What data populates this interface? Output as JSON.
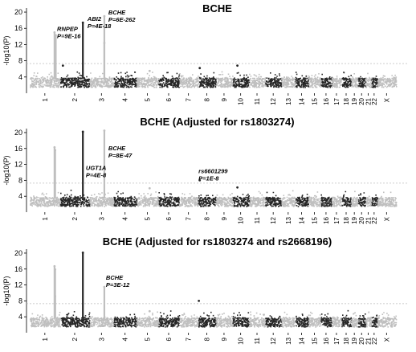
{
  "chart_data": [
    {
      "type": "scatter",
      "title": "BCHE",
      "ylabel": "-log10(P)",
      "ylim": [
        0,
        21
      ],
      "yticks": [
        4,
        8,
        12,
        16,
        20
      ],
      "threshold": 7.3,
      "chromosomes": [
        "1",
        "2",
        "3",
        "4",
        "5",
        "6",
        "7",
        "8",
        "9",
        "10",
        "11",
        "12",
        "13",
        "14",
        "15",
        "16",
        "17",
        "18",
        "19",
        "20",
        "21",
        "22",
        "X"
      ],
      "annotations": [
        {
          "gene": "RNPEP",
          "p": "P=9E-16",
          "chr": "1",
          "value": 15
        },
        {
          "gene": "ABI2",
          "p": "P=4E-18",
          "chr": "2",
          "value": 17.4
        },
        {
          "gene": "BCHE",
          "p": "P=6E-262",
          "chr": "3",
          "value": 19
        }
      ],
      "peaks": [
        {
          "chr": "1",
          "pos": 0.82,
          "value": 15
        },
        {
          "chr": "1",
          "pos": 0.86,
          "value": 14.3
        },
        {
          "chr": "2",
          "pos": 0.78,
          "value": 17.4
        },
        {
          "chr": "3",
          "pos": 0.62,
          "value": 19
        },
        {
          "chr": "3",
          "pos": 0.62,
          "value": 12.4
        },
        {
          "chr": "2",
          "pos": 0.1,
          "value": 6.8
        },
        {
          "chr": "10",
          "pos": 0.3,
          "value": 6.8
        },
        {
          "chr": "8",
          "pos": 0.1,
          "value": 6.2
        },
        {
          "chr": "5",
          "pos": 0.6,
          "value": 5.5
        }
      ]
    },
    {
      "type": "scatter",
      "title": "BCHE (Adjusted for rs1803274)",
      "ylabel": "-log10(P)",
      "ylim": [
        0,
        21
      ],
      "yticks": [
        4,
        8,
        12,
        16,
        20
      ],
      "threshold": 7.3,
      "chromosomes": [
        "1",
        "2",
        "3",
        "4",
        "5",
        "6",
        "7",
        "8",
        "9",
        "10",
        "11",
        "12",
        "13",
        "14",
        "15",
        "16",
        "17",
        "18",
        "19",
        "20",
        "21",
        "22",
        "X"
      ],
      "annotations": [
        {
          "gene": "BCHE",
          "p": "P=8E-47",
          "chr": "3",
          "value": 20.5
        },
        {
          "gene": "UGT1A",
          "p": "P=4E-8",
          "chr": "2",
          "value": 7.8
        },
        {
          "gene": "rs6601299",
          "p": "P=1E-8",
          "chr": "8",
          "value": 8
        }
      ],
      "peaks": [
        {
          "chr": "1",
          "pos": 0.82,
          "value": 16.3
        },
        {
          "chr": "1",
          "pos": 0.84,
          "value": 15.6
        },
        {
          "chr": "2",
          "pos": 0.78,
          "value": 20.2
        },
        {
          "chr": "3",
          "pos": 0.62,
          "value": 20.5
        },
        {
          "chr": "8",
          "pos": 0.1,
          "value": 8
        },
        {
          "chr": "10",
          "pos": 0.3,
          "value": 6.2
        },
        {
          "chr": "5",
          "pos": 0.6,
          "value": 6
        }
      ]
    },
    {
      "type": "scatter",
      "title": "BCHE (Adjusted for rs1803274 and rs2668196)",
      "ylabel": "-log10(P)",
      "ylim": [
        0,
        21
      ],
      "yticks": [
        4,
        8,
        12,
        16,
        20
      ],
      "threshold": 7.3,
      "chromosomes": [
        "1",
        "2",
        "3",
        "4",
        "5",
        "6",
        "7",
        "8",
        "9",
        "10",
        "11",
        "12",
        "13",
        "14",
        "15",
        "16",
        "17",
        "18",
        "19",
        "20",
        "21",
        "22",
        "X"
      ],
      "annotations": [
        {
          "gene": "BCHE",
          "p": "P=3E-12",
          "chr": "3",
          "value": 11.5
        }
      ],
      "peaks": [
        {
          "chr": "1",
          "pos": 0.82,
          "value": 16.7
        },
        {
          "chr": "1",
          "pos": 0.84,
          "value": 15.9
        },
        {
          "chr": "1",
          "pos": 0.84,
          "value": 9.2
        },
        {
          "chr": "2",
          "pos": 0.78,
          "value": 20.1
        },
        {
          "chr": "3",
          "pos": 0.62,
          "value": 11.5
        },
        {
          "chr": "8",
          "pos": 0.05,
          "value": 8
        },
        {
          "chr": "5",
          "pos": 0.6,
          "value": 5.4
        }
      ]
    }
  ]
}
